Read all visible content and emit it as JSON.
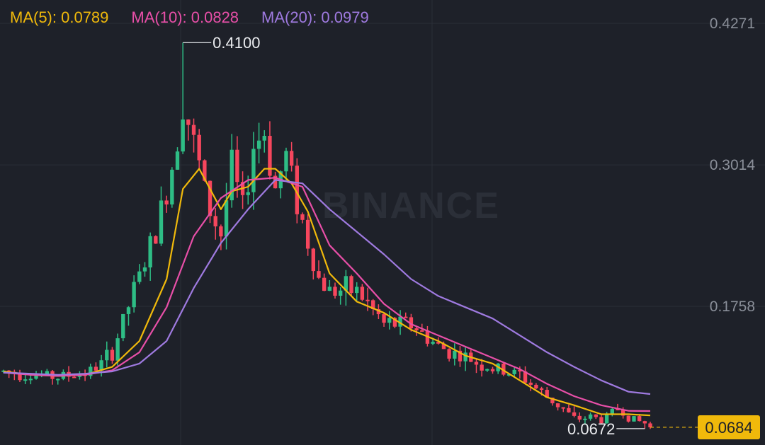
{
  "legend": {
    "ma5": {
      "label": "MA(5): 0.0789",
      "color": "#f0b90b"
    },
    "ma10": {
      "label": "MA(10): 0.0828",
      "color": "#e84fa8"
    },
    "ma20": {
      "label": "MA(20): 0.0979",
      "color": "#9f7ae0"
    }
  },
  "watermark": "BINANCE",
  "colors": {
    "up": "#2ebd85",
    "down": "#f6465d",
    "grid": "#2a2e37",
    "price_tag_bg": "#f0b90b"
  },
  "chart_data": {
    "type": "candlestick",
    "y_axis_labels": [
      "0.4271",
      "0.3014",
      "0.1758"
    ],
    "y_axis_ticks": [
      0.4271,
      0.3014,
      0.1758
    ],
    "ylim": [
      0.055,
      0.44
    ],
    "high_annotation": {
      "label": "0.4100",
      "value": 0.41,
      "index": 33
    },
    "low_annotation": {
      "label": "0.0672",
      "value": 0.0672,
      "index": 118
    },
    "last_price": {
      "label": "0.0684",
      "value": 0.0684
    },
    "x_count": 120,
    "ma_series": [
      {
        "name": "MA(5)",
        "x": [
          0,
          5,
          10,
          15,
          20,
          25,
          30,
          33,
          36,
          40,
          42,
          45,
          48,
          50,
          53,
          56,
          60,
          65,
          70,
          75,
          80,
          85,
          90,
          95,
          100,
          105,
          110,
          115,
          119
        ],
        "y": [
          0.118,
          0.115,
          0.114,
          0.115,
          0.122,
          0.145,
          0.2,
          0.28,
          0.298,
          0.262,
          0.278,
          0.282,
          0.298,
          0.298,
          0.285,
          0.26,
          0.205,
          0.18,
          0.17,
          0.155,
          0.145,
          0.132,
          0.125,
          0.11,
          0.095,
          0.088,
          0.08,
          0.08,
          0.0789
        ]
      },
      {
        "name": "MA(10)",
        "x": [
          0,
          5,
          10,
          15,
          20,
          25,
          30,
          35,
          40,
          45,
          50,
          55,
          60,
          65,
          70,
          75,
          80,
          85,
          90,
          95,
          100,
          105,
          110,
          115,
          119
        ],
        "y": [
          0.117,
          0.115,
          0.114,
          0.115,
          0.119,
          0.135,
          0.175,
          0.238,
          0.272,
          0.288,
          0.29,
          0.282,
          0.23,
          0.205,
          0.178,
          0.16,
          0.15,
          0.14,
          0.13,
          0.12,
          0.107,
          0.096,
          0.088,
          0.083,
          0.0828
        ]
      },
      {
        "name": "MA(20)",
        "x": [
          0,
          5,
          10,
          15,
          20,
          25,
          30,
          35,
          40,
          45,
          50,
          55,
          60,
          65,
          70,
          75,
          80,
          85,
          90,
          95,
          100,
          105,
          110,
          115,
          119
        ],
        "y": [
          0.117,
          0.116,
          0.115,
          0.116,
          0.118,
          0.125,
          0.145,
          0.192,
          0.232,
          0.262,
          0.288,
          0.285,
          0.262,
          0.242,
          0.222,
          0.2,
          0.185,
          0.175,
          0.165,
          0.15,
          0.135,
          0.122,
          0.11,
          0.1,
          0.0979
        ]
      }
    ],
    "close_path": {
      "x": [
        0,
        10,
        16,
        18,
        20,
        24,
        28,
        31,
        32,
        33,
        35,
        38,
        40,
        42,
        44,
        46,
        48,
        50,
        52,
        55,
        58,
        60,
        65,
        70,
        75,
        80,
        85,
        90,
        95,
        100,
        103,
        105,
        108,
        110,
        113,
        116,
        118,
        119
      ],
      "y": [
        0.118,
        0.113,
        0.118,
        0.125,
        0.135,
        0.19,
        0.24,
        0.3,
        0.33,
        0.36,
        0.32,
        0.26,
        0.24,
        0.3,
        0.26,
        0.32,
        0.33,
        0.28,
        0.31,
        0.25,
        0.2,
        0.19,
        0.19,
        0.16,
        0.16,
        0.14,
        0.13,
        0.12,
        0.115,
        0.095,
        0.085,
        0.075,
        0.078,
        0.075,
        0.085,
        0.075,
        0.072,
        0.0684
      ]
    }
  }
}
